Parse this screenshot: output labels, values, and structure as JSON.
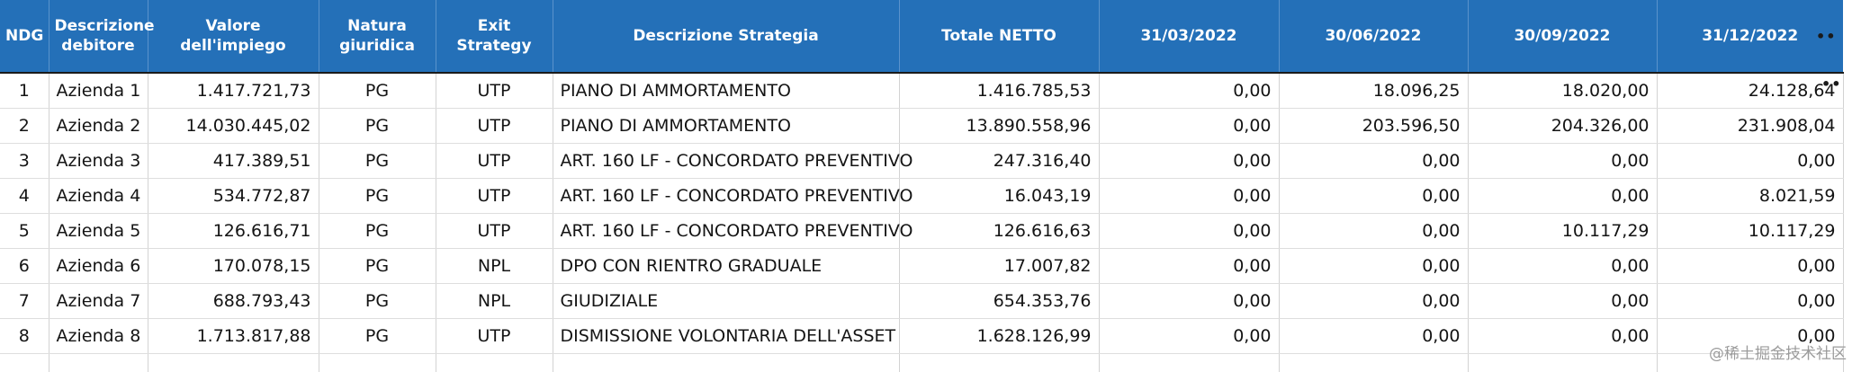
{
  "table": {
    "headers": [
      "NDG",
      "Descrizione debitore",
      "Valore dell'impiego",
      "Natura giuridica",
      "Exit Strategy",
      "Descrizione Strategia",
      "Totale NETTO",
      "31/03/2022",
      "30/06/2022",
      "30/09/2022",
      "31/12/2022"
    ],
    "rows": [
      [
        "1",
        "Azienda 1",
        "1.417.721,73",
        "PG",
        "UTP",
        "PIANO DI AMMORTAMENTO",
        "1.416.785,53",
        "0,00",
        "18.096,25",
        "18.020,00",
        "24.128,64"
      ],
      [
        "2",
        "Azienda 2",
        "14.030.445,02",
        "PG",
        "UTP",
        "PIANO DI AMMORTAMENTO",
        "13.890.558,96",
        "0,00",
        "203.596,50",
        "204.326,00",
        "231.908,04"
      ],
      [
        "3",
        "Azienda 3",
        "417.389,51",
        "PG",
        "UTP",
        "ART. 160 LF - CONCORDATO PREVENTIVO",
        "247.316,40",
        "0,00",
        "0,00",
        "0,00",
        "0,00"
      ],
      [
        "4",
        "Azienda 4",
        "534.772,87",
        "PG",
        "UTP",
        "ART. 160 LF - CONCORDATO PREVENTIVO",
        "16.043,19",
        "0,00",
        "0,00",
        "0,00",
        "8.021,59"
      ],
      [
        "5",
        "Azienda 5",
        "126.616,71",
        "PG",
        "UTP",
        "ART. 160 LF - CONCORDATO PREVENTIVO",
        "126.616,63",
        "0,00",
        "0,00",
        "10.117,29",
        "10.117,29"
      ],
      [
        "6",
        "Azienda 6",
        "170.078,15",
        "PG",
        "NPL",
        "DPO CON RIENTRO GRADUALE",
        "17.007,82",
        "0,00",
        "0,00",
        "0,00",
        "0,00"
      ],
      [
        "7",
        "Azienda 7",
        "688.793,43",
        "PG",
        "NPL",
        "GIUDIZIALE",
        "654.353,76",
        "0,00",
        "0,00",
        "0,00",
        "0,00"
      ],
      [
        "8",
        "Azienda 8",
        "1.713.817,88",
        "PG",
        "UTP",
        "DISMISSIONE VOLONTARIA DELL'ASSET",
        "1.628.126,99",
        "0,00",
        "0,00",
        "0,00",
        "0,00"
      ]
    ]
  },
  "truncation_marks": {
    "header": "••",
    "row": "••"
  },
  "watermark": "@稀土掘金技术社区",
  "colors": {
    "header_bg": "#2470b8",
    "header_text": "#ffffff",
    "grid_line": "#d3d3d3"
  }
}
